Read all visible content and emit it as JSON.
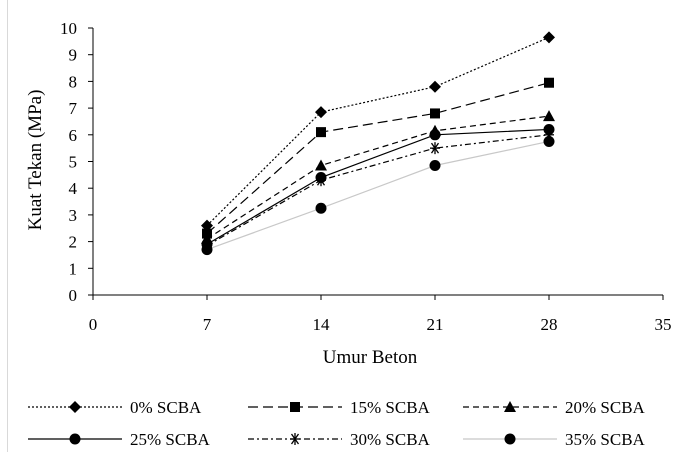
{
  "chart_data": {
    "type": "line",
    "xlabel": "Umur Beton",
    "ylabel": "Kuat Tekan  (MPa)",
    "xlim": [
      0,
      35
    ],
    "ylim": [
      0,
      10
    ],
    "xticks": [
      "0",
      "7",
      "14",
      "21",
      "28",
      "35"
    ],
    "yticks": [
      "0",
      "1",
      "2",
      "3",
      "4",
      "5",
      "6",
      "7",
      "8",
      "9",
      "10"
    ],
    "grid": false,
    "legend_position": "bottom",
    "x": [
      7,
      14,
      21,
      28
    ],
    "series": [
      {
        "name": "0% SCBA",
        "values": [
          2.6,
          6.85,
          7.8,
          9.65
        ],
        "marker": "diamond",
        "dash": "dotted",
        "color": "#000000"
      },
      {
        "name": "15% SCBA",
        "values": [
          2.3,
          6.1,
          6.8,
          7.95
        ],
        "marker": "square",
        "dash": "long-dash",
        "color": "#000000"
      },
      {
        "name": "20% SCBA",
        "values": [
          2.1,
          4.85,
          6.15,
          6.7
        ],
        "marker": "triangle",
        "dash": "dash",
        "color": "#000000"
      },
      {
        "name": "25% SCBA",
        "values": [
          1.9,
          4.4,
          6.0,
          6.2
        ],
        "marker": "circle",
        "dash": "solid",
        "color": "#000000"
      },
      {
        "name": "30% SCBA",
        "values": [
          1.85,
          4.3,
          5.5,
          6.0
        ],
        "marker": "asterisk",
        "dash": "dash-dot",
        "color": "#000000"
      },
      {
        "name": "35% SCBA",
        "values": [
          1.7,
          3.25,
          4.85,
          5.75
        ],
        "marker": "circle",
        "dash": "solid-light",
        "color": "#000000",
        "line_color": "#c8c8c8"
      }
    ]
  }
}
